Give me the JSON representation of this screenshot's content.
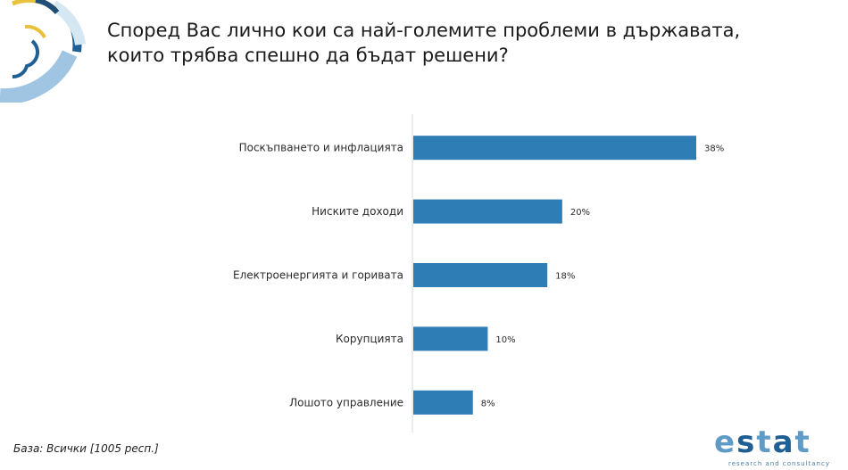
{
  "title": "Според Вас лично кои са най-големите проблеми в държавата, които трябва спешно да бъдат решени?",
  "base_note": "База: Всички [1005 респ.]",
  "brand": {
    "name": "estat",
    "tagline": "research and consultancy"
  },
  "colors": {
    "bar": "#2e7db5",
    "axis": "#d9d9d9",
    "accent_gold": "#e8c23a",
    "accent_dark": "#1f5f93",
    "accent_light": "#9fc5e3"
  },
  "chart_data": {
    "type": "bar",
    "orientation": "horizontal",
    "categories": [
      "Поскъпването и инфлацията",
      "Ниските доходи",
      "Електроенергията и горивата",
      "Корупцията",
      "Лошото управление"
    ],
    "values": [
      38,
      20,
      18,
      10,
      8
    ],
    "value_labels": [
      "38%",
      "20%",
      "18%",
      "10%",
      "8%"
    ],
    "unit": "%",
    "xlim": [
      0,
      40
    ],
    "grid": false,
    "legend": "none"
  }
}
